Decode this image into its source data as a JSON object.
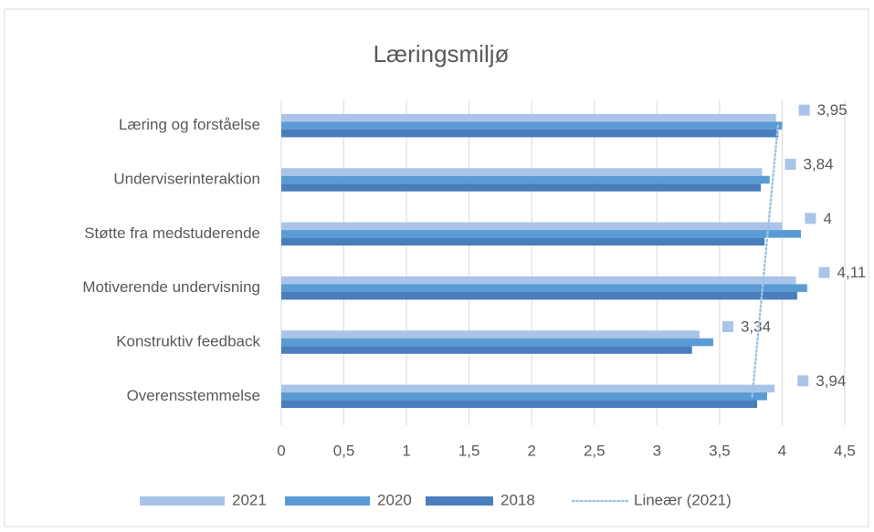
{
  "chart_data": {
    "type": "hbar",
    "title": "Læringsmiljø",
    "categories": [
      "Læring og forståelse",
      "Underviserinteraktion",
      "Støtte fra medstuderende",
      "Motiverende undervisning",
      "Konstruktiv feedback",
      "Overensstemmelse"
    ],
    "series": [
      {
        "name": "2021",
        "color": "#a9c4e8",
        "values": [
          3.95,
          3.84,
          4,
          4.11,
          3.34,
          3.94
        ],
        "value_labels": [
          "3,95",
          "3,84",
          "4",
          "4,11",
          "3,34",
          "3,94"
        ]
      },
      {
        "name": "2020",
        "color": "#5b9bd5",
        "values": [
          4.0,
          3.9,
          4.15,
          4.2,
          3.45,
          3.88
        ]
      },
      {
        "name": "2018",
        "color": "#4a7dbb",
        "values": [
          3.97,
          3.83,
          3.86,
          4.12,
          3.28,
          3.8
        ]
      }
    ],
    "trendline": {
      "name": "Lineær (2021)",
      "series": 0,
      "color": "#9dc3e6"
    },
    "xlim": [
      0,
      4.5
    ],
    "xticks": [
      0,
      {
        "value": 0.5,
        "label": "0,5"
      },
      1,
      {
        "value": 1.5,
        "label": "1,5"
      },
      2,
      {
        "value": 2.5,
        "label": "2,5"
      },
      3,
      {
        "value": 3.5,
        "label": "3,5"
      },
      4,
      {
        "value": 4.5,
        "label": "4,5"
      }
    ],
    "grid": true,
    "legend": "bottom"
  }
}
